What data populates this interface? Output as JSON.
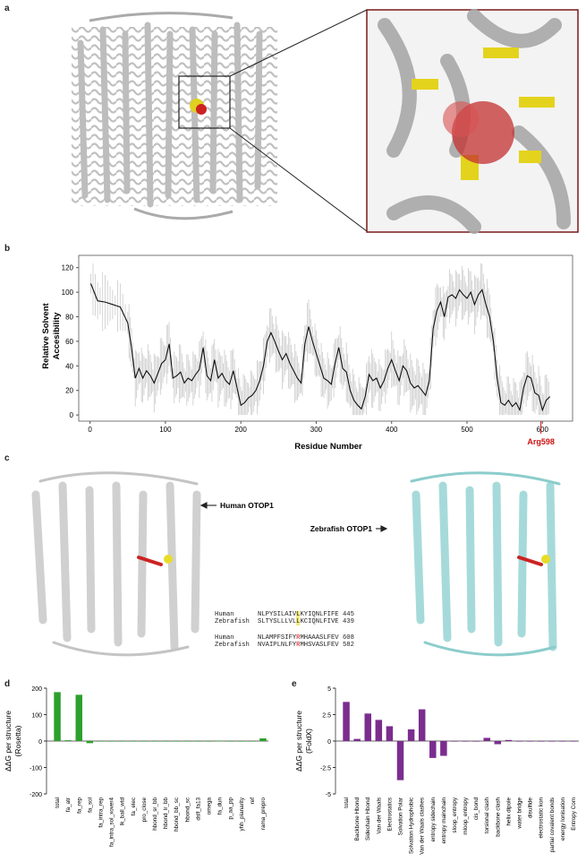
{
  "panel_labels": {
    "a": "a",
    "b": "b",
    "c": "c",
    "d": "d",
    "e": "e"
  },
  "panel_b": {
    "ylabel_line1": "Relative Solvent",
    "ylabel_line2": "Accesibility",
    "xlabel": "Residue Number",
    "marker_label": "Arg598",
    "marker_color": "#cc1111"
  },
  "panel_c": {
    "human_label": "Human OTOP1",
    "zebrafish_label": "Zebrafish OTOP1",
    "alignments": [
      {
        "rows": [
          {
            "species": "Human",
            "pre": "NLPYSILAIV",
            "mark": "L",
            "post": "KYIQNLFIFE",
            "num": "445"
          },
          {
            "species": "Zebrafish",
            "pre": "SLTYSLLLVL",
            "mark": "L",
            "post": "KCIQNLFIVE",
            "num": "439"
          }
        ]
      },
      {
        "rows": [
          {
            "species": "Human",
            "pre": "NLAMPFSIFY",
            "mark": "R",
            "post": "MHAAASLFEV",
            "num": "608"
          },
          {
            "species": "Zebrafish",
            "pre": "NVAIPLNLFY",
            "mark": "R",
            "post": "MHSVASLFEV",
            "num": "582"
          }
        ]
      }
    ]
  },
  "chart_data": [
    {
      "type": "line",
      "panel": "b",
      "xlabel": "Residue Number",
      "ylabel": "Relative Solvent Accesibility",
      "xlim": [
        -15,
        640
      ],
      "ylim": [
        -5,
        130
      ],
      "xticks": [
        0,
        100,
        200,
        300,
        400,
        500,
        600
      ],
      "yticks": [
        0,
        20,
        40,
        60,
        80,
        100,
        120
      ],
      "x": [
        1,
        10,
        20,
        30,
        40,
        50,
        55,
        60,
        65,
        70,
        75,
        80,
        85,
        90,
        95,
        100,
        105,
        110,
        115,
        120,
        125,
        130,
        135,
        140,
        145,
        150,
        155,
        160,
        165,
        170,
        175,
        180,
        185,
        190,
        195,
        200,
        205,
        210,
        215,
        220,
        225,
        230,
        235,
        240,
        245,
        250,
        255,
        260,
        265,
        270,
        275,
        280,
        285,
        290,
        295,
        300,
        305,
        310,
        315,
        320,
        325,
        330,
        335,
        340,
        345,
        350,
        355,
        360,
        365,
        370,
        375,
        380,
        385,
        390,
        395,
        400,
        405,
        410,
        415,
        420,
        425,
        430,
        435,
        440,
        445,
        450,
        455,
        460,
        465,
        470,
        475,
        480,
        485,
        490,
        495,
        500,
        505,
        510,
        515,
        520,
        525,
        530,
        535,
        540,
        545,
        550,
        555,
        560,
        565,
        570,
        575,
        580,
        585,
        590,
        595,
        600,
        605,
        610
      ],
      "y": [
        107,
        93,
        92,
        90,
        88,
        75,
        55,
        30,
        38,
        30,
        36,
        32,
        26,
        34,
        42,
        45,
        58,
        30,
        32,
        35,
        26,
        30,
        28,
        33,
        37,
        55,
        32,
        28,
        45,
        30,
        34,
        28,
        25,
        36,
        22,
        8,
        10,
        14,
        16,
        20,
        28,
        40,
        60,
        67,
        60,
        52,
        45,
        50,
        42,
        36,
        30,
        26,
        58,
        72,
        60,
        50,
        40,
        30,
        28,
        25,
        42,
        55,
        38,
        35,
        20,
        12,
        8,
        5,
        15,
        33,
        28,
        30,
        22,
        28,
        38,
        45,
        36,
        28,
        40,
        36,
        26,
        22,
        24,
        20,
        16,
        28,
        70,
        85,
        92,
        80,
        96,
        98,
        95,
        102,
        98,
        95,
        100,
        90,
        98,
        102,
        90,
        80,
        60,
        30,
        10,
        8,
        12,
        7,
        10,
        4,
        22,
        32,
        30,
        18,
        16,
        4,
        12,
        15
      ],
      "annotation": {
        "label": "Arg598",
        "x": 598
      }
    },
    {
      "type": "bar",
      "panel": "d",
      "ylabel": "ΔΔG per structure (Rosetta)",
      "ylim": [
        -200,
        200
      ],
      "yticks": [
        -200,
        -100,
        0,
        100,
        200
      ],
      "color": "#2ca02c",
      "categories": [
        "total",
        "fa_atr",
        "fa_rep",
        "fa_sol",
        "fa_intra_rep",
        "fa_intra_sol_xover4",
        "lk_ball_wtd",
        "fa_elec",
        "pro_close",
        "hbond_sr_bb",
        "hbond_lr_bb",
        "hbond_bb_sc",
        "hbond_sc",
        "dslf_fa13",
        "omega",
        "fa_dun",
        "p_aa_pp",
        "yhh_planarity",
        "ref",
        "rama_prepro"
      ],
      "values": [
        185,
        3,
        175,
        -8,
        0,
        0,
        0,
        0,
        0,
        0,
        0,
        0,
        0,
        0,
        0,
        1,
        0,
        0,
        0,
        10
      ]
    },
    {
      "type": "bar",
      "panel": "e",
      "ylabel": "ΔΔG per structure (FoldX)",
      "ylim": [
        -5,
        5
      ],
      "yticks": [
        -5,
        -2.5,
        0,
        2.5,
        5
      ],
      "ytick_labels": [
        "-5",
        "-2.5",
        "0",
        "2.5",
        "5"
      ],
      "color": "#7b2d8e",
      "categories": [
        "total",
        "Backbone Hbond",
        "Sidechain Hbond",
        "Van der Waals",
        "Electrostatics",
        "Solvation Polar",
        "Solvation Hydrophobic",
        "Van der Waals clashes",
        "entropy sidechain",
        "entropy mainchain",
        "sloop_entropy",
        "mloop_entropy",
        "cis_bond",
        "torsional clash",
        "backbone clash",
        "helix dipole",
        "water bridge",
        "disulfide",
        "electrostatic kon",
        "partial covalent bonds",
        "energy Ionisation",
        "Entropy Com"
      ],
      "values": [
        3.7,
        0.2,
        2.6,
        2.0,
        1.4,
        -3.7,
        1.1,
        3.0,
        -1.6,
        -1.4,
        0,
        0,
        0,
        0.3,
        -0.3,
        0.1,
        0,
        0,
        0,
        0,
        0,
        0
      ]
    }
  ]
}
